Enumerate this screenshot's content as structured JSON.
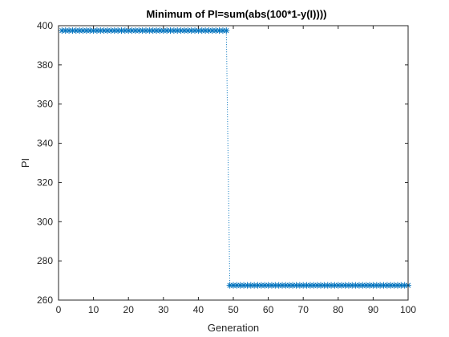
{
  "chart_data": {
    "type": "line",
    "title": "Minimum of PI=sum(abs(100*1-y(I))))",
    "xlabel": "Generation",
    "ylabel": "PI",
    "xlim": [
      0,
      100
    ],
    "ylim": [
      260,
      400
    ],
    "xticks": [
      0,
      10,
      20,
      30,
      40,
      50,
      60,
      70,
      80,
      90,
      100
    ],
    "yticks": [
      260,
      280,
      300,
      320,
      340,
      360,
      380,
      400
    ],
    "grid": false,
    "legend": "none",
    "marker": "asterisk",
    "line_style": "dotted",
    "color": "#0072BD",
    "series": [
      {
        "segments": [
          {
            "x_from": 1,
            "x_to": 48,
            "y": 397.5
          },
          {
            "x_from": 49,
            "x_to": 100,
            "y": 267.5
          }
        ]
      }
    ]
  }
}
